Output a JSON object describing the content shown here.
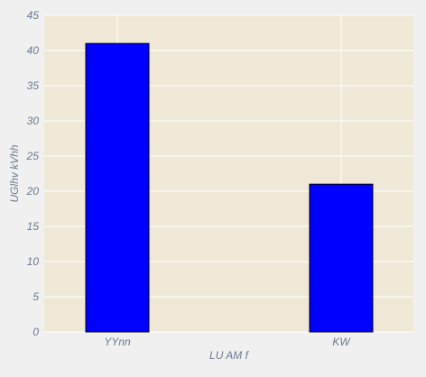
{
  "chart_data": {
    "type": "bar",
    "title": "",
    "xlabel": "LU AM f",
    "ylabel": "UGlhv kVhh",
    "categories": [
      "YYnn",
      "KW"
    ],
    "values": [
      41,
      21
    ],
    "ylim": [
      0,
      45
    ],
    "yticks": [
      0,
      5,
      10,
      15,
      20,
      25,
      30,
      35,
      40,
      45
    ],
    "grid": true,
    "colors": {
      "bar": "#0000ff",
      "bar_edge": "#000000",
      "plot_background": "#efe8d7",
      "figure_background": "#f0f0f0",
      "grid": "#ffffff",
      "text": "#6b7a8f"
    }
  }
}
